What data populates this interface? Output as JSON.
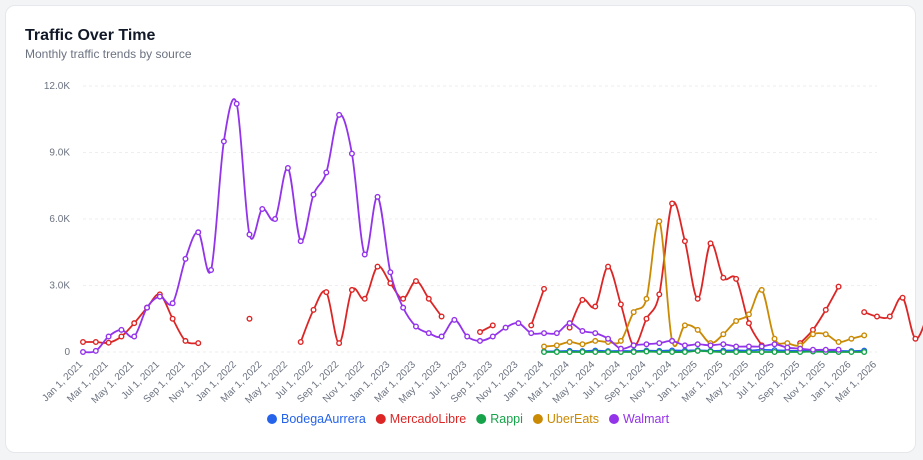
{
  "header": {
    "title": "Traffic Over Time",
    "subtitle": "Monthly traffic trends by source"
  },
  "chart_data": {
    "type": "line",
    "title": "Traffic Over Time",
    "subtitle": "Monthly traffic trends by source",
    "ylim": [
      0,
      12000
    ],
    "y_ticks": [
      0,
      3000,
      6000,
      9000,
      12000
    ],
    "y_tick_labels": [
      "0",
      "3.0K",
      "6.0K",
      "9.0K",
      "12.0K"
    ],
    "x_tick_labels": [
      "Jan 1, 2021",
      "Mar 1, 2021",
      "May 1, 2021",
      "Jul 1, 2021",
      "Sep 1, 2021",
      "Nov 1, 2021",
      "Jan 1, 2022",
      "Mar 1, 2022",
      "May 1, 2022",
      "Jul 1, 2022",
      "Sep 1, 2022",
      "Nov 1, 2022",
      "Jan 1, 2023",
      "Mar 1, 2023",
      "May 1, 2023",
      "Jul 1, 2023",
      "Sep 1, 2023",
      "Nov 1, 2023",
      "Jan 1, 2024",
      "Mar 1, 2024",
      "May 1, 2024",
      "Jul 1, 2024",
      "Sep 1, 2024",
      "Nov 1, 2024",
      "Jan 1, 2025",
      "Mar 1, 2025",
      "May 1, 2025",
      "Jul 1, 2025",
      "Sep 1, 2025",
      "Nov 1, 2025",
      "Jan 1, 2026",
      "Mar 1, 2026"
    ],
    "grid": true,
    "legend_position": "bottom",
    "series": [
      {
        "name": "BodegaAurrera",
        "color": "#2563eb",
        "start_index": 36,
        "values": [
          20,
          30,
          50,
          40,
          60,
          40,
          50,
          40,
          60,
          50,
          70,
          60,
          80,
          50,
          60,
          70,
          60,
          100,
          80,
          60,
          50,
          60,
          40,
          50,
          40,
          60
        ]
      },
      {
        "name": "MercadoLibre",
        "color": "#dc2626",
        "start_index": 0,
        "values": [
          450,
          450,
          420,
          700,
          1300,
          2000,
          2600,
          1500,
          500,
          400,
          null,
          null,
          null,
          1500,
          null,
          null,
          null,
          450,
          1900,
          2700,
          400,
          2800,
          2400,
          3850,
          3100,
          2400,
          3200,
          2400,
          1600,
          null,
          null,
          900,
          1200,
          null,
          null,
          1200,
          2850,
          null,
          1100,
          2350,
          2050,
          3850,
          2150,
          300,
          1500,
          2600,
          6700,
          5000,
          2400,
          4900,
          3350,
          3300,
          1300,
          300,
          null,
          null,
          400,
          1000,
          1900,
          2950,
          null,
          1800,
          1600,
          1600,
          2450,
          600,
          1750
        ]
      },
      {
        "name": "Rappi",
        "color": "#16a34a",
        "start_index": 36,
        "values": [
          0,
          0,
          0,
          0,
          0,
          0,
          0,
          0,
          20,
          0,
          0,
          0,
          50,
          20,
          0,
          0,
          0,
          0,
          0,
          0,
          0,
          20,
          0,
          0,
          0,
          0
        ]
      },
      {
        "name": "UberEats",
        "color": "#ca8a04",
        "start_index": 36,
        "values": [
          250,
          300,
          450,
          350,
          500,
          450,
          500,
          1800,
          2400,
          5900,
          500,
          1200,
          1000,
          400,
          800,
          1400,
          1700,
          2800,
          600,
          400,
          300,
          800,
          800,
          450,
          600,
          750
        ]
      },
      {
        "name": "Walmart",
        "color": "#9333ea",
        "start_index": 0,
        "values": [
          0,
          50,
          700,
          1000,
          700,
          2000,
          2500,
          2200,
          4200,
          5400,
          3700,
          9500,
          11200,
          5300,
          6450,
          6000,
          8300,
          5000,
          7100,
          8100,
          10700,
          8950,
          4400,
          7000,
          3600,
          2000,
          1150,
          850,
          700,
          1450,
          700,
          500,
          700,
          1100,
          1300,
          850,
          850,
          850,
          1300,
          950,
          850,
          600,
          150,
          300,
          350,
          400,
          500,
          300,
          350,
          300,
          350,
          250,
          250,
          250,
          350,
          200,
          150,
          100,
          100,
          100
        ]
      }
    ]
  }
}
